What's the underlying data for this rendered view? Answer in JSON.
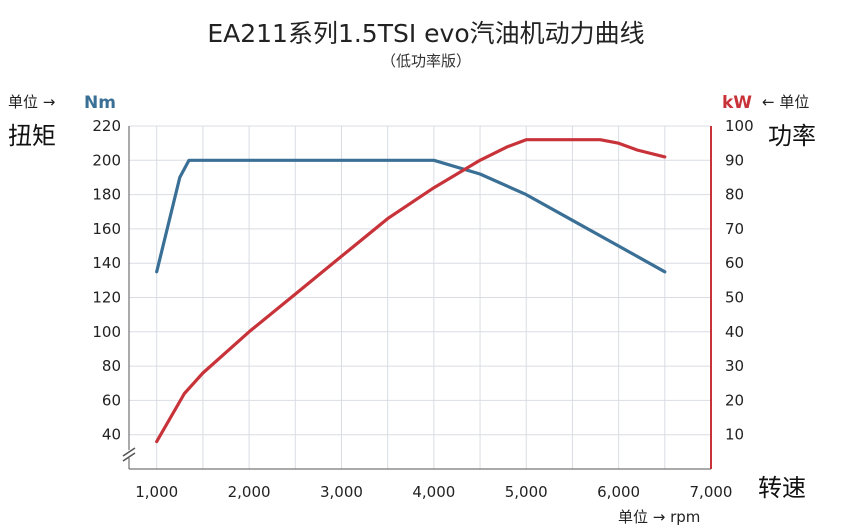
{
  "chart_data": {
    "type": "line",
    "title": "EA211系列1.5TSI evo汽油机动力曲线",
    "subtitle": "（低功率版）",
    "left_axis": {
      "unit_prefix": "单位 →",
      "unit": "Nm",
      "name": "扭矩",
      "ticks": [
        40,
        60,
        80,
        100,
        120,
        140,
        160,
        180,
        200,
        220
      ],
      "range": [
        20,
        220
      ]
    },
    "right_axis": {
      "unit": "kW",
      "unit_suffix": "← 单位",
      "name": "功率",
      "ticks": [
        10,
        20,
        30,
        40,
        50,
        60,
        70,
        80,
        90,
        100
      ],
      "range": [
        0,
        100
      ]
    },
    "x_axis": {
      "name": "转速",
      "unit_label": "单位 → rpm",
      "ticks": [
        "1,000",
        "2,000",
        "3,000",
        "4,000",
        "5,000",
        "6,000",
        "7,000"
      ],
      "tick_values": [
        1000,
        2000,
        3000,
        4000,
        5000,
        6000,
        7000
      ],
      "range": [
        700,
        7000
      ]
    },
    "grid": true,
    "axis_break": true,
    "series": [
      {
        "axis": "left",
        "color": "#3a6f96",
        "x": [
          1000,
          1250,
          1350,
          1500,
          2000,
          3000,
          4000,
          4500,
          5000,
          5500,
          6000,
          6500
        ],
        "values": [
          135,
          190,
          200,
          200,
          200,
          200,
          200,
          192,
          180,
          165,
          150,
          135
        ]
      },
      {
        "axis": "right",
        "color": "#c8333a",
        "x": [
          1000,
          1300,
          1500,
          2000,
          2500,
          3000,
          3500,
          4000,
          4500,
          4800,
          5000,
          5200,
          5500,
          5800,
          6000,
          6200,
          6500
        ],
        "values": [
          8,
          22,
          28,
          40,
          51,
          62,
          73,
          82,
          90,
          94,
          96,
          96,
          96,
          96,
          95,
          93,
          91
        ]
      }
    ]
  }
}
